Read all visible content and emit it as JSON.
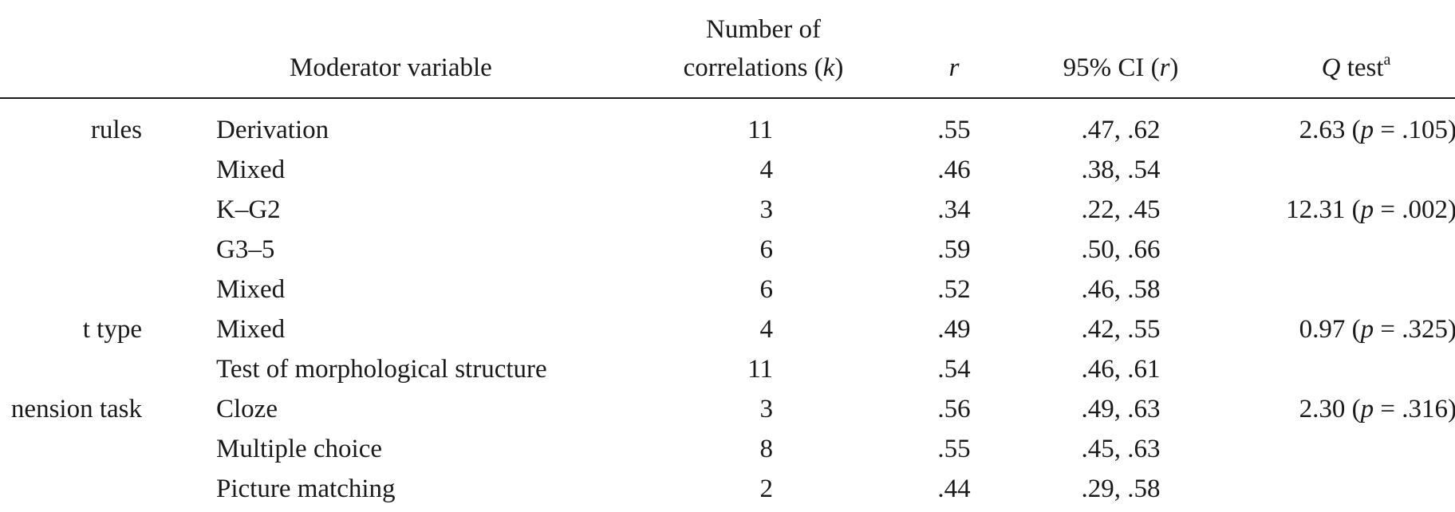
{
  "header": {
    "moderator_variable": "Moderator variable",
    "k_line1": "Number of",
    "k_line2_pre": "correlations (",
    "k_line2_sym": "k",
    "k_line2_post": ")",
    "r": "r",
    "ci_pre": "95% CI (",
    "ci_sym": "r",
    "ci_post": ")",
    "q_sym": "Q",
    "q_text": " test",
    "q_sup": "a"
  },
  "rows": [
    {
      "category": "rules",
      "moderator": "Derivation",
      "k": "11",
      "r": ".55",
      "ci": ".47, .62",
      "q_val": "2.63 (",
      "q_p": "p",
      "q_rest": " = .105)"
    },
    {
      "category": "",
      "moderator": "Mixed",
      "k": "4",
      "r": ".46",
      "ci": ".38, .54",
      "q_val": "",
      "q_p": "",
      "q_rest": ""
    },
    {
      "category": "",
      "moderator": "K–G2",
      "k": "3",
      "r": ".34",
      "ci": ".22, .45",
      "q_val": "12.31 (",
      "q_p": "p",
      "q_rest": " = .002)"
    },
    {
      "category": "",
      "moderator": "G3–5",
      "k": "6",
      "r": ".59",
      "ci": ".50, .66",
      "q_val": "",
      "q_p": "",
      "q_rest": ""
    },
    {
      "category": "",
      "moderator": "Mixed",
      "k": "6",
      "r": ".52",
      "ci": ".46, .58",
      "q_val": "",
      "q_p": "",
      "q_rest": ""
    },
    {
      "category": "t type",
      "moderator": "Mixed",
      "k": "4",
      "r": ".49",
      "ci": ".42, .55",
      "q_val": "0.97 (",
      "q_p": "p",
      "q_rest": " = .325)"
    },
    {
      "category": "",
      "moderator": "Test of morphological structure",
      "k": "11",
      "r": ".54",
      "ci": ".46, .61",
      "q_val": "",
      "q_p": "",
      "q_rest": ""
    },
    {
      "category": "nension task",
      "moderator": "Cloze",
      "k": "3",
      "r": ".56",
      "ci": ".49, .63",
      "q_val": "2.30 (",
      "q_p": "p",
      "q_rest": " = .316)"
    },
    {
      "category": "",
      "moderator": "Multiple choice",
      "k": "8",
      "r": ".55",
      "ci": ".45, .63",
      "q_val": "",
      "q_p": "",
      "q_rest": ""
    },
    {
      "category": "",
      "moderator": "Picture matching",
      "k": "2",
      "r": ".44",
      "ci": ".29, .58",
      "q_val": "",
      "q_p": "",
      "q_rest": ""
    }
  ]
}
